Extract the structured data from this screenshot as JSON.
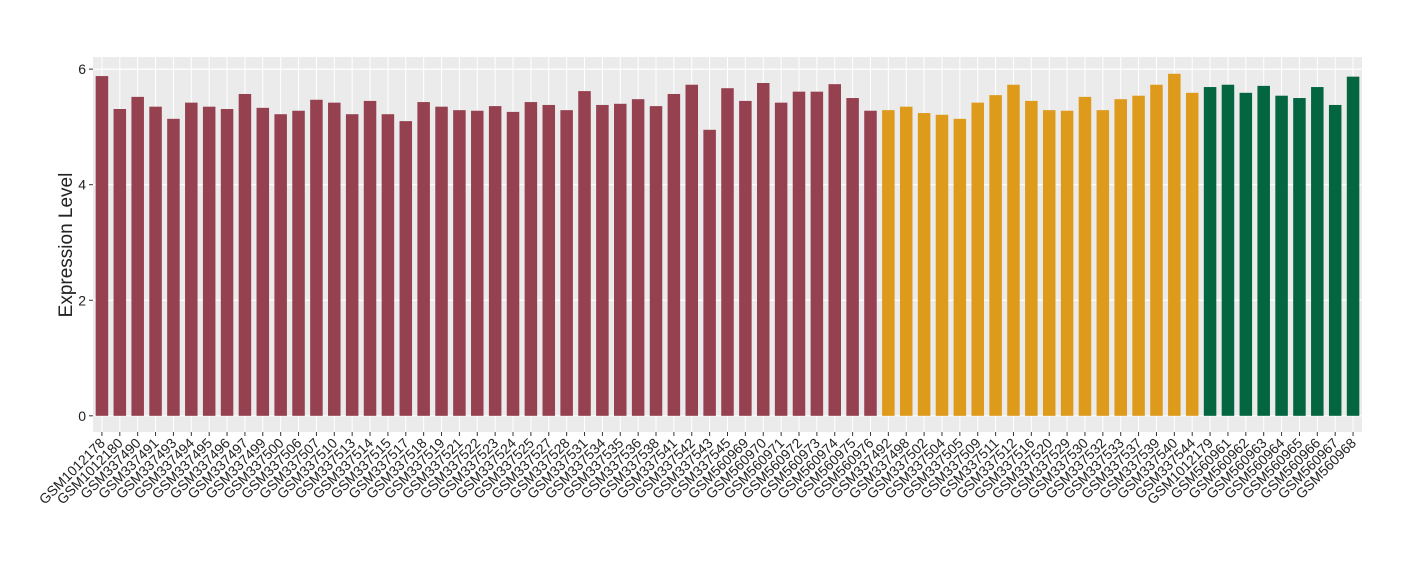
{
  "chart_data": {
    "type": "bar",
    "y_label": "Expression Level",
    "categories": [
      "GSM1012178",
      "GSM1012180",
      "GSM337490",
      "GSM337491",
      "GSM337493",
      "GSM337494",
      "GSM337495",
      "GSM337496",
      "GSM337497",
      "GSM337499",
      "GSM337500",
      "GSM337506",
      "GSM337507",
      "GSM337510",
      "GSM337513",
      "GSM337514",
      "GSM337515",
      "GSM337517",
      "GSM337518",
      "GSM337519",
      "GSM337521",
      "GSM337522",
      "GSM337523",
      "GSM337524",
      "GSM337525",
      "GSM337527",
      "GSM337528",
      "GSM337531",
      "GSM337534",
      "GSM337535",
      "GSM337536",
      "GSM337538",
      "GSM337541",
      "GSM337542",
      "GSM337543",
      "GSM337545",
      "GSM560969",
      "GSM560970",
      "GSM560971",
      "GSM560972",
      "GSM560973",
      "GSM560974",
      "GSM560975",
      "GSM560976",
      "GSM337492",
      "GSM337498",
      "GSM337502",
      "GSM337504",
      "GSM337505",
      "GSM337509",
      "GSM337511",
      "GSM337512",
      "GSM337516",
      "GSM337520",
      "GSM337529",
      "GSM337530",
      "GSM337532",
      "GSM337533",
      "GSM337537",
      "GSM337539",
      "GSM337540",
      "GSM337544",
      "GSM1012179",
      "GSM560961",
      "GSM560962",
      "GSM560963",
      "GSM560964",
      "GSM560965",
      "GSM560966",
      "GSM560967",
      "GSM560968"
    ],
    "values": [
      5.88,
      5.31,
      5.52,
      5.35,
      5.14,
      5.42,
      5.35,
      5.31,
      5.57,
      5.33,
      5.22,
      5.28,
      5.47,
      5.42,
      5.22,
      5.45,
      5.22,
      5.1,
      5.43,
      5.35,
      5.29,
      5.28,
      5.36,
      5.26,
      5.43,
      5.38,
      5.29,
      5.62,
      5.38,
      5.4,
      5.48,
      5.36,
      5.57,
      5.73,
      4.95,
      5.67,
      5.45,
      5.76,
      5.42,
      5.61,
      5.61,
      5.74,
      5.5,
      5.28,
      5.29,
      5.35,
      5.24,
      5.21,
      5.14,
      5.42,
      5.55,
      5.73,
      5.45,
      5.29,
      5.28,
      5.52,
      5.29,
      5.48,
      5.54,
      5.73,
      5.92,
      5.59,
      5.69,
      5.73,
      5.59,
      5.71,
      5.54,
      5.5,
      5.69,
      5.38,
      5.87
    ],
    "colors": [
      "#96414f",
      "#96414f",
      "#96414f",
      "#96414f",
      "#96414f",
      "#96414f",
      "#96414f",
      "#96414f",
      "#96414f",
      "#96414f",
      "#96414f",
      "#96414f",
      "#96414f",
      "#96414f",
      "#96414f",
      "#96414f",
      "#96414f",
      "#96414f",
      "#96414f",
      "#96414f",
      "#96414f",
      "#96414f",
      "#96414f",
      "#96414f",
      "#96414f",
      "#96414f",
      "#96414f",
      "#96414f",
      "#96414f",
      "#96414f",
      "#96414f",
      "#96414f",
      "#96414f",
      "#96414f",
      "#96414f",
      "#96414f",
      "#96414f",
      "#96414f",
      "#96414f",
      "#96414f",
      "#96414f",
      "#96414f",
      "#96414f",
      "#96414f",
      "#dd9a1b",
      "#dd9a1b",
      "#dd9a1b",
      "#dd9a1b",
      "#dd9a1b",
      "#dd9a1b",
      "#dd9a1b",
      "#dd9a1b",
      "#dd9a1b",
      "#dd9a1b",
      "#dd9a1b",
      "#dd9a1b",
      "#dd9a1b",
      "#dd9a1b",
      "#dd9a1b",
      "#dd9a1b",
      "#dd9a1b",
      "#dd9a1b",
      "#036641",
      "#036641",
      "#036641",
      "#036641",
      "#036641",
      "#036641",
      "#036641",
      "#036641",
      "#036641"
    ],
    "ylim": [
      -0.28,
      6.21
    ],
    "yticks": [
      0,
      2,
      4,
      6
    ],
    "grid": true
  }
}
